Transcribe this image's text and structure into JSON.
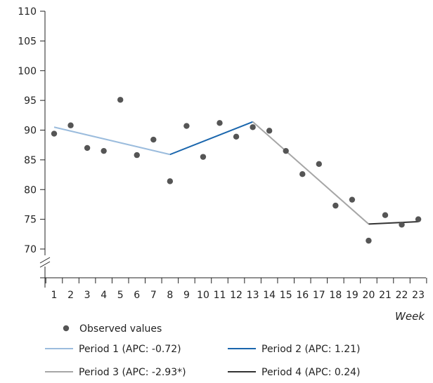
{
  "chart_data": {
    "type": "line",
    "xlabel": "Week",
    "ylabel": "",
    "x": [
      1,
      2,
      3,
      4,
      5,
      6,
      7,
      8,
      9,
      10,
      11,
      12,
      13,
      14,
      15,
      16,
      17,
      18,
      19,
      20,
      21,
      22,
      23
    ],
    "xticks": [
      1,
      2,
      3,
      4,
      5,
      6,
      7,
      8,
      9,
      10,
      11,
      12,
      13,
      14,
      15,
      16,
      17,
      18,
      19,
      20,
      21,
      22,
      23
    ],
    "ylim": [
      70,
      110
    ],
    "yticks": [
      70,
      75,
      80,
      85,
      90,
      95,
      100,
      105,
      110
    ],
    "axis_break": true,
    "grid": false,
    "legend_position": "bottom",
    "observed": {
      "name": "Observed values",
      "color": "#555555",
      "values": [
        89.4,
        90.8,
        87.0,
        86.5,
        95.1,
        85.8,
        88.4,
        81.4,
        90.7,
        85.5,
        91.2,
        88.9,
        90.5,
        89.9,
        86.5,
        82.6,
        84.3,
        77.3,
        78.3,
        71.4,
        75.7,
        74.1,
        75.0
      ]
    },
    "series": [
      {
        "name": "Period 1 (APC: -0.72)",
        "color": "#9bbcdd",
        "points": [
          [
            1,
            90.5
          ],
          [
            8,
            85.9
          ]
        ]
      },
      {
        "name": "Period 2 (APC: 1.21)",
        "color": "#1a66ad",
        "points": [
          [
            8,
            85.9
          ],
          [
            13,
            91.4
          ]
        ]
      },
      {
        "name": "Period 3 (APC: -2.93*)",
        "color": "#a6a6a6",
        "points": [
          [
            13,
            91.4
          ],
          [
            20,
            74.2
          ]
        ]
      },
      {
        "name": "Period 4 (APC: 0.24)",
        "color": "#333333",
        "points": [
          [
            20,
            74.2
          ],
          [
            23,
            74.6
          ]
        ]
      }
    ]
  }
}
